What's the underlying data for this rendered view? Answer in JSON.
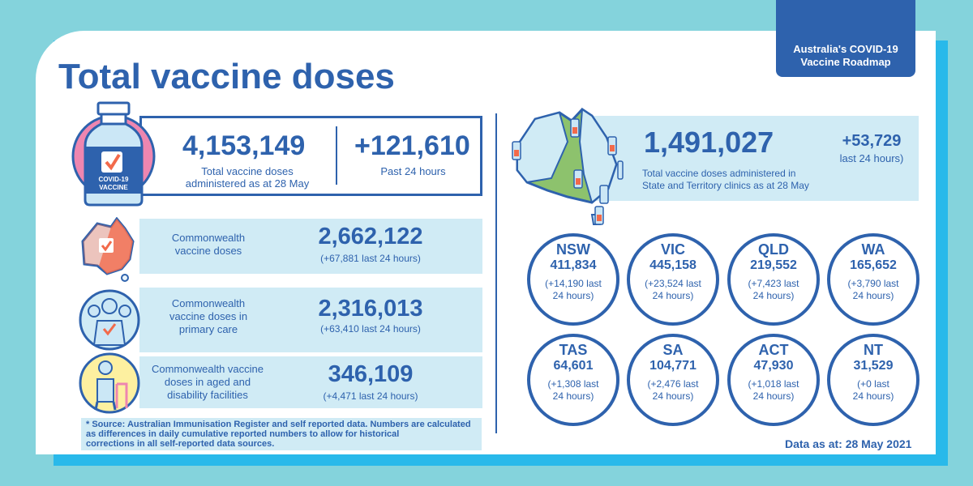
{
  "header": {
    "title": "Total vaccine doses",
    "roadmap_line1": "Australia's COVID-19",
    "roadmap_line2": "Vaccine Roadmap"
  },
  "total": {
    "value": "4,153,149",
    "label_line1": "Total vaccine doses",
    "label_line2": "administered as at 28 May",
    "delta": "+121,610",
    "delta_label": "Past 24 hours",
    "icon_text_line1": "COVID-19",
    "icon_text_line2": "VACCINE"
  },
  "commonwealth": {
    "label_line1": "Commonwealth",
    "label_line2": "vaccine doses",
    "value": "2,662,122",
    "sub": "(+67,881 last 24 hours)"
  },
  "primary_care": {
    "label_line1": "Commonwealth",
    "label_line2": "vaccine doses in",
    "label_line3": "primary care",
    "value": "2,316,013",
    "sub": "(+63,410 last 24 hours)"
  },
  "aged_care": {
    "label_line1": "Commonwealth  vaccine",
    "label_line2": "doses  in  aged  and",
    "label_line3": "disability  facilities",
    "value": "346,109",
    "sub": "(+4,471 last 24 hours)"
  },
  "source": {
    "line1": "* Source: Australian Immunisation Register and self reported data. Numbers are calculated",
    "line2": "as differences in daily cumulative reported numbers to allow for historical",
    "line3": "corrections  in all self-reported data sources."
  },
  "state_total": {
    "value": "1,491,027",
    "label_line1": "Total vaccine doses administered in",
    "label_line2": "State and Territory clinics as at 28 May",
    "delta": "+53,729",
    "delta_label": "last 24 hours)"
  },
  "states": [
    {
      "name": "NSW",
      "value": "411,834",
      "last_line1": "(+14,190 last",
      "last_line2": "24 hours)"
    },
    {
      "name": "VIC",
      "value": "445,158",
      "last_line1": "(+23,524 last",
      "last_line2": "24 hours)"
    },
    {
      "name": "QLD",
      "value": "219,552",
      "last_line1": "(+7,423 last",
      "last_line2": "24 hours)"
    },
    {
      "name": "WA",
      "value": "165,652",
      "last_line1": "(+3,790 last",
      "last_line2": "24 hours)"
    },
    {
      "name": "TAS",
      "value": "64,601",
      "last_line1": "(+1,308 last",
      "last_line2": "24 hours)"
    },
    {
      "name": "SA",
      "value": "104,771",
      "last_line1": "(+2,476 last",
      "last_line2": "24 hours)"
    },
    {
      "name": "ACT",
      "value": "47,930",
      "last_line1": "(+1,018 last",
      "last_line2": "24 hours)"
    },
    {
      "name": "NT",
      "value": "31,529",
      "last_line1": "(+0 last",
      "last_line2": "24 hours)"
    }
  ],
  "footer": {
    "data_as_at": "Data as at: 28 May 2021"
  },
  "colors": {
    "primary": "#2e62ad",
    "light_blue": "#d0ebf5",
    "pink": "#ee86b0",
    "orange": "#f26a4b",
    "green": "#8dc26d",
    "yellow": "#fdf0a0"
  }
}
